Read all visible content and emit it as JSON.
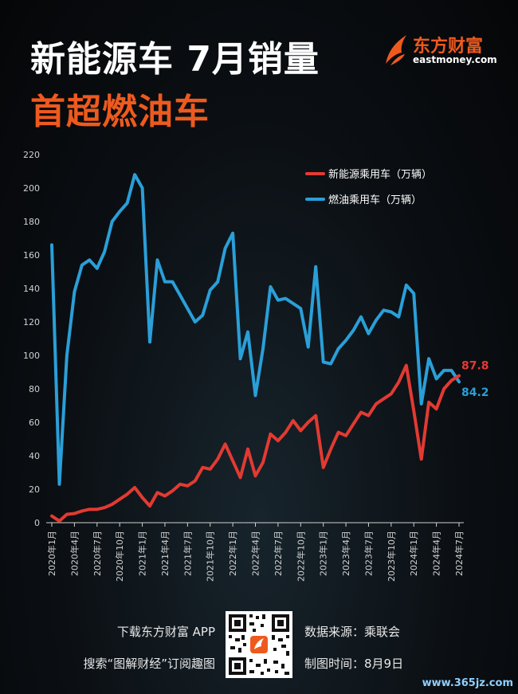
{
  "header": {
    "title_line1": "新能源车 7月销量",
    "title_line2": "首超燃油车"
  },
  "logo": {
    "name_cn": "东方财富",
    "name_en": "eastmoney.com"
  },
  "colors": {
    "nev": "#e23a32",
    "ice": "#2a9fd8",
    "accent": "#ee5a1e",
    "axis": "#d0d0d0"
  },
  "chart_data": {
    "type": "line",
    "title": "",
    "xlabel": "",
    "ylabel": "",
    "ylim": [
      0,
      220
    ],
    "yticks": [
      0,
      20,
      40,
      60,
      80,
      100,
      120,
      140,
      160,
      180,
      200,
      220
    ],
    "x_tick_labels": [
      "2020年1月",
      "2020年4月",
      "2020年7月",
      "2020年10月",
      "2021年1月",
      "2021年4月",
      "2021年7月",
      "2021年10月",
      "2022年1月",
      "2022年4月",
      "2022年7月",
      "2022年10月",
      "2023年1月",
      "2023年4月",
      "2023年7月",
      "2023年10月",
      "2024年1月",
      "2024年4月",
      "2024年7月"
    ],
    "legend_position": "top-right",
    "grid": false,
    "series": [
      {
        "name": "新能源乘用车（万辆）",
        "color": "#e23a32",
        "values": [
          4.0,
          1.0,
          5.0,
          5.5,
          7.0,
          8.0,
          8.0,
          9.0,
          11.0,
          14.0,
          17.0,
          21.0,
          15.0,
          10.0,
          18.0,
          16.0,
          19.0,
          23.0,
          22.0,
          25.0,
          33.0,
          32.0,
          38.0,
          47.0,
          37.0,
          27.0,
          44.0,
          28.0,
          36.0,
          53.0,
          49.0,
          54.0,
          61.0,
          55.0,
          60.0,
          64.0,
          33.0,
          44.0,
          54.0,
          52.0,
          59.0,
          66.0,
          64.0,
          71.0,
          74.0,
          77.0,
          84.0,
          94.0,
          67.0,
          38.0,
          72.0,
          68.0,
          80.0,
          85.0,
          87.8
        ],
        "end_label": "87.8"
      },
      {
        "name": "燃油乘用车（万辆）",
        "color": "#2a9fd8",
        "values": [
          166.0,
          23.0,
          100.0,
          138.0,
          154.0,
          157.0,
          152.0,
          162.0,
          180.0,
          186.0,
          191.0,
          208.0,
          200.0,
          108.0,
          157.0,
          144.0,
          144.0,
          136.0,
          128.0,
          120.0,
          124.0,
          139.0,
          144.0,
          164.0,
          173.0,
          98.0,
          114.0,
          76.0,
          104.0,
          141.0,
          133.0,
          134.0,
          131.0,
          128.0,
          105.0,
          153.0,
          96.0,
          95.0,
          104.0,
          109.0,
          115.0,
          123.0,
          113.0,
          121.0,
          127.0,
          126.0,
          123.0,
          142.0,
          137.0,
          71.0,
          98.0,
          86.0,
          91.0,
          91.0,
          84.2
        ],
        "end_label": "84.2"
      }
    ]
  },
  "footer": {
    "download_line": "下载东方财富 APP",
    "search_line": "搜索“图解财经”订阅趣图",
    "source_line": "数据来源：乘联会",
    "date_line": "制图时间：8月9日"
  },
  "watermark": "www.365jz.com"
}
